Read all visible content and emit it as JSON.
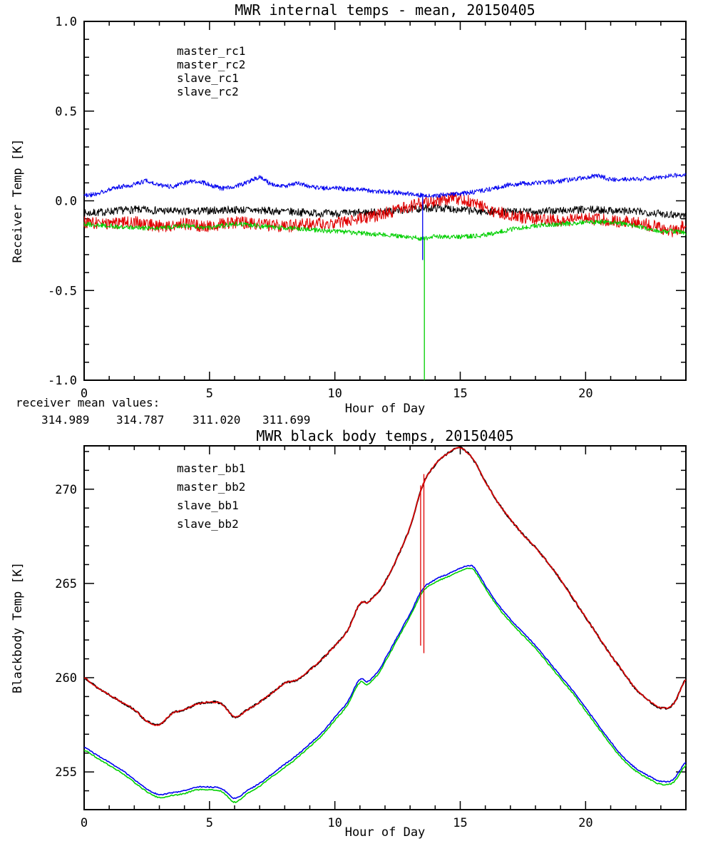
{
  "page": {
    "background": "#ffffff"
  },
  "colors": {
    "black": "#000000",
    "red": "#e00000",
    "blue": "#0000f0",
    "green": "#00cf00"
  },
  "annotation": {
    "label": "receiver mean values:",
    "values": [
      {
        "text": "314.989",
        "color": "#000000"
      },
      {
        "text": "314.787",
        "color": "#e00000"
      },
      {
        "text": "311.020",
        "color": "#0000f0"
      },
      {
        "text": "311.699",
        "color": "#00cf00"
      }
    ]
  },
  "chart_data": [
    {
      "type": "line",
      "title": "MWR internal temps - mean, 20150405",
      "xlabel": "Hour of Day",
      "ylabel": "Receiver Temp [K]",
      "xlim": [
        0,
        24
      ],
      "ylim": [
        -1.0,
        1.0
      ],
      "xticks": [
        0,
        5,
        10,
        15,
        20
      ],
      "xtick_labels": [
        "0",
        "5",
        "10",
        "15",
        "20"
      ],
      "xminor": 1,
      "yticks": [
        -1.0,
        -0.5,
        0.0,
        0.5,
        1.0
      ],
      "ytick_labels": [
        "-1.0",
        "-0.5",
        "0.0",
        "0.5",
        "1.0"
      ],
      "yminor": 0.1,
      "grid": false,
      "legend_position": "upper-left-inside",
      "seed": 7,
      "step": 0.02,
      "series": [
        {
          "name": "master_rc1",
          "color": "#000000",
          "noise": 0.022,
          "width": 1,
          "x": [
            0,
            2,
            4,
            6,
            8,
            10,
            12,
            14,
            16,
            18,
            20,
            22,
            24
          ],
          "y": [
            -0.07,
            -0.05,
            -0.06,
            -0.05,
            -0.06,
            -0.07,
            -0.06,
            -0.04,
            -0.06,
            -0.06,
            -0.05,
            -0.06,
            -0.08
          ]
        },
        {
          "name": "master_rc2",
          "color": "#e00000",
          "noise": 0.035,
          "width": 1,
          "x": [
            0,
            1,
            2,
            3,
            4,
            5,
            6,
            7,
            8,
            9,
            10,
            11,
            12,
            13,
            14,
            15,
            16,
            17,
            18,
            19,
            20,
            21,
            22,
            23,
            23.5,
            24
          ],
          "y": [
            -0.12,
            -0.13,
            -0.12,
            -0.14,
            -0.13,
            -0.14,
            -0.12,
            -0.13,
            -0.14,
            -0.13,
            -0.12,
            -0.1,
            -0.07,
            -0.03,
            0.0,
            0.01,
            -0.04,
            -0.08,
            -0.1,
            -0.11,
            -0.1,
            -0.11,
            -0.12,
            -0.15,
            -0.17,
            -0.13
          ]
        },
        {
          "name": "slave_rc2",
          "color": "#00cf00",
          "noise": 0.013,
          "width": 1,
          "x": [
            0,
            1,
            2,
            3,
            4,
            5,
            6,
            7,
            8,
            9,
            10,
            11,
            12,
            13,
            13.5,
            14,
            15,
            16,
            17,
            18,
            19,
            20,
            21,
            22,
            23,
            23.5,
            24
          ],
          "y": [
            -0.13,
            -0.14,
            -0.15,
            -0.15,
            -0.14,
            -0.15,
            -0.13,
            -0.14,
            -0.15,
            -0.16,
            -0.17,
            -0.18,
            -0.19,
            -0.2,
            -0.21,
            -0.2,
            -0.2,
            -0.19,
            -0.16,
            -0.14,
            -0.13,
            -0.12,
            -0.12,
            -0.14,
            -0.17,
            -0.17,
            -0.18
          ]
        },
        {
          "name": "slave_rc1",
          "color": "#0000f0",
          "noise": 0.013,
          "width": 1,
          "x": [
            0,
            0.5,
            1,
            1.5,
            2,
            2.5,
            3,
            3.5,
            4,
            4.5,
            5,
            5.5,
            6,
            6.5,
            7,
            7.5,
            8,
            8.5,
            9,
            9.5,
            10,
            11,
            12,
            13,
            13.5,
            14,
            15,
            16,
            17,
            18,
            19,
            20,
            20.5,
            21,
            22,
            23,
            23.5,
            24
          ],
          "y": [
            0.03,
            0.04,
            0.06,
            0.08,
            0.09,
            0.11,
            0.09,
            0.08,
            0.1,
            0.11,
            0.09,
            0.07,
            0.08,
            0.1,
            0.13,
            0.09,
            0.08,
            0.1,
            0.08,
            0.07,
            0.07,
            0.06,
            0.05,
            0.04,
            0.03,
            0.03,
            0.04,
            0.06,
            0.09,
            0.1,
            0.11,
            0.13,
            0.14,
            0.12,
            0.12,
            0.13,
            0.14,
            0.15
          ]
        }
      ],
      "legend_order": [
        "master_rc1",
        "master_rc2",
        "slave_rc1",
        "slave_rc2"
      ],
      "spikes": [
        {
          "x": 13.5,
          "y1": 0.04,
          "y2": -0.33,
          "color": "#0000f0"
        },
        {
          "x": 13.57,
          "y1": -0.2,
          "y2": -1.0,
          "color": "#00cf00"
        }
      ]
    },
    {
      "type": "line",
      "title": "MWR black body temps, 20150405",
      "xlabel": "Hour of Day",
      "ylabel": "Blackbody Temp [K]",
      "xlim": [
        0,
        24
      ],
      "ylim": [
        253,
        272.3
      ],
      "xticks": [
        0,
        5,
        10,
        15,
        20
      ],
      "xtick_labels": [
        "0",
        "5",
        "10",
        "15",
        "20"
      ],
      "xminor": 1,
      "yticks": [
        255,
        260,
        265,
        270
      ],
      "ytick_labels": [
        "255",
        "260",
        "265",
        "270"
      ],
      "yminor": 1,
      "grid": false,
      "legend_position": "upper-left-inside",
      "seed": 13,
      "step": 0.04,
      "series": [
        {
          "name": "master_bb1",
          "color": "#000000",
          "noise": 0.05,
          "width": 2,
          "x": [
            0,
            0.5,
            1,
            1.5,
            2,
            2.5,
            3,
            3.5,
            4,
            4.5,
            5,
            5.5,
            6,
            6.5,
            7,
            7.5,
            8,
            8.5,
            9,
            9.5,
            10,
            10.5,
            11,
            11.3,
            11.7,
            12,
            12.5,
            13,
            13.5,
            14,
            14.5,
            15,
            15.5,
            16,
            16.5,
            17,
            17.5,
            18,
            18.5,
            19,
            19.5,
            20,
            20.5,
            21,
            21.5,
            22,
            22.5,
            23,
            23.5,
            24
          ],
          "y": [
            260.0,
            259.5,
            259.1,
            258.7,
            258.3,
            257.7,
            257.5,
            258.1,
            258.3,
            258.6,
            258.7,
            258.6,
            257.9,
            258.3,
            258.7,
            259.2,
            259.7,
            259.9,
            260.4,
            261.0,
            261.7,
            262.5,
            263.9,
            264.0,
            264.5,
            265.1,
            266.4,
            268.0,
            270.2,
            271.3,
            271.9,
            272.2,
            271.6,
            270.4,
            269.3,
            268.4,
            267.6,
            266.9,
            266.1,
            265.2,
            264.2,
            263.2,
            262.2,
            261.2,
            260.3,
            259.4,
            258.8,
            258.4,
            258.6,
            259.9
          ]
        },
        {
          "name": "master_bb2",
          "color": "#e00000",
          "noise": 0.04,
          "width": 1.6,
          "x": [
            0,
            0.5,
            1,
            1.5,
            2,
            2.5,
            3,
            3.5,
            4,
            4.5,
            5,
            5.5,
            6,
            6.5,
            7,
            7.5,
            8,
            8.5,
            9,
            9.5,
            10,
            10.5,
            11,
            11.3,
            11.7,
            12,
            12.5,
            13,
            13.5,
            14,
            14.5,
            15,
            15.5,
            16,
            16.5,
            17,
            17.5,
            18,
            18.5,
            19,
            19.5,
            20,
            20.5,
            21,
            21.5,
            22,
            22.5,
            23,
            23.5,
            24
          ],
          "y": [
            260.0,
            259.5,
            259.1,
            258.7,
            258.3,
            257.7,
            257.5,
            258.1,
            258.3,
            258.6,
            258.7,
            258.6,
            257.9,
            258.3,
            258.7,
            259.2,
            259.7,
            259.9,
            260.4,
            261.0,
            261.7,
            262.5,
            263.9,
            264.0,
            264.5,
            265.1,
            266.4,
            268.0,
            270.2,
            271.3,
            271.9,
            272.2,
            271.6,
            270.4,
            269.3,
            268.4,
            267.6,
            266.9,
            266.1,
            265.2,
            264.2,
            263.2,
            262.2,
            261.2,
            260.3,
            259.4,
            258.8,
            258.4,
            258.6,
            259.9
          ]
        },
        {
          "name": "slave_bb2",
          "color": "#00cf00",
          "noise": 0.03,
          "width": 1.6,
          "x": [
            0,
            0.5,
            1,
            1.5,
            2,
            2.5,
            3,
            3.5,
            4,
            4.5,
            5,
            5.5,
            6,
            6.5,
            7,
            7.5,
            8,
            8.5,
            9,
            9.5,
            10,
            10.5,
            11,
            11.3,
            11.7,
            12,
            12.5,
            13,
            13.5,
            14,
            14.5,
            15,
            15.5,
            16,
            16.5,
            17,
            17.5,
            18,
            18.5,
            19,
            19.5,
            20,
            20.5,
            21,
            21.5,
            22,
            22.5,
            23,
            23.5,
            24
          ],
          "y": [
            256.15,
            255.75,
            255.35,
            254.95,
            254.45,
            253.95,
            253.65,
            253.75,
            253.85,
            254.05,
            254.05,
            253.95,
            253.4,
            253.85,
            254.25,
            254.75,
            255.25,
            255.75,
            256.35,
            256.95,
            257.75,
            258.55,
            259.75,
            259.65,
            260.15,
            260.85,
            262.05,
            263.25,
            264.55,
            265.05,
            265.35,
            265.65,
            265.75,
            264.75,
            263.75,
            262.95,
            262.25,
            261.55,
            260.75,
            259.95,
            259.15,
            258.25,
            257.35,
            256.45,
            255.65,
            255.05,
            254.65,
            254.35,
            254.45,
            255.35
          ]
        },
        {
          "name": "slave_bb1",
          "color": "#0000f0",
          "noise": 0.03,
          "width": 1.6,
          "x": [
            0,
            0.5,
            1,
            1.5,
            2,
            2.5,
            3,
            3.5,
            4,
            4.5,
            5,
            5.5,
            6,
            6.5,
            7,
            7.5,
            8,
            8.5,
            9,
            9.5,
            10,
            10.5,
            11,
            11.3,
            11.7,
            12,
            12.5,
            13,
            13.5,
            14,
            14.5,
            15,
            15.5,
            16,
            16.5,
            17,
            17.5,
            18,
            18.5,
            19,
            19.5,
            20,
            20.5,
            21,
            21.5,
            22,
            22.5,
            23,
            23.5,
            24
          ],
          "y": [
            256.3,
            255.9,
            255.5,
            255.1,
            254.6,
            254.1,
            253.8,
            253.9,
            254.0,
            254.2,
            254.2,
            254.1,
            253.6,
            254.0,
            254.4,
            254.9,
            255.4,
            255.9,
            256.5,
            257.1,
            257.9,
            258.7,
            259.9,
            259.8,
            260.3,
            261.0,
            262.2,
            263.4,
            264.7,
            265.2,
            265.5,
            265.8,
            265.9,
            264.9,
            263.9,
            263.1,
            262.4,
            261.7,
            260.9,
            260.1,
            259.3,
            258.4,
            257.5,
            256.6,
            255.8,
            255.2,
            254.8,
            254.5,
            254.6,
            255.5
          ]
        }
      ],
      "legend_order": [
        "master_bb1",
        "master_bb2",
        "slave_bb1",
        "slave_bb2"
      ],
      "spikes": [
        {
          "x": 13.42,
          "y1": 270.2,
          "y2": 261.7,
          "color": "#e00000"
        },
        {
          "x": 13.55,
          "y1": 270.8,
          "y2": 261.3,
          "color": "#e00000"
        }
      ]
    }
  ]
}
